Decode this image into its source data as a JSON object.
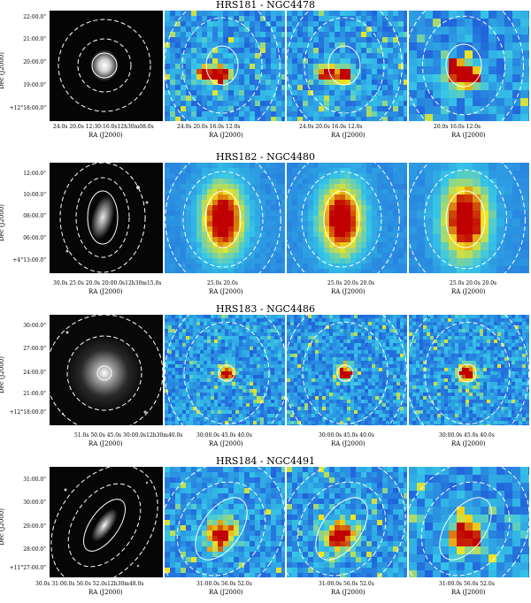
{
  "rows": [
    {
      "title": "HRS181 - NGC4478",
      "ylabel": "Dec (J2000)",
      "yticks": [
        "22:00.0\"",
        "21:00.0\"",
        "20:00.0\"",
        "19:00.0\"",
        "+12°18:00.0\""
      ],
      "panels": [
        {
          "xticks": "24.0s    20.0s    12:30:16.0s12h30m08.0s",
          "xtitle": "RA (J2000)"
        },
        {
          "xticks": "24.0s  20.0s    16.0s   12.0s",
          "xtitle": "RA (J2000)"
        },
        {
          "xticks": "24.0s  20.0s    16.0s   12.0s",
          "xtitle": "RA (J2000)"
        },
        {
          "xticks": "20.0s   16.0s   12.0s",
          "xtitle": "RA (J2000)"
        }
      ]
    },
    {
      "title": "HRS182 - NGC4480",
      "ylabel": "Dec (J2000)",
      "yticks": [
        "12:00.0\"",
        "10:00.0\"",
        "08:00.0\"",
        "06:00.0\"",
        "+4°13:00.0\""
      ],
      "panels": [
        {
          "xticks": "30.0s        25.0s   20.0s  20:00.0s12h30m15.0s",
          "xtitle": "RA (J2000)"
        },
        {
          "xticks": "25.0s    20.0s",
          "xtitle": "RA (J2000)"
        },
        {
          "xticks": "25.0s    20.0s    20.0s",
          "xtitle": "RA (J2000)"
        },
        {
          "xticks": "25.0s    20.0s    20.0s",
          "xtitle": "RA (J2000)"
        }
      ]
    },
    {
      "title": "HRS183 - NGC4486",
      "ylabel": "Dec (J2000)",
      "yticks": [
        "30:00.0\"",
        "27:00.0\"",
        "24:00.0\"",
        "21:00.0\"",
        "+12°18:00.0\""
      ],
      "panels": [
        {
          "xticks": "51.0s 50.0s  45.0s    30:00.0s12h30m40.0s",
          "xtitle": "RA (J2000)"
        },
        {
          "xticks": "30:00.0s 45.0s   40.0s",
          "xtitle": "RA (J2000)"
        },
        {
          "xticks": "30:00.0s 45.0s   40.0s",
          "xtitle": "RA (J2000)"
        },
        {
          "xticks": "30:00.0s 45.0s   40.0s",
          "xtitle": "RA (J2000)"
        }
      ]
    },
    {
      "title": "HRS184 - NGC4491",
      "ylabel": "Dec (J2000)",
      "yticks": [
        "31:00.0\"",
        "30:00.0\"",
        "29:00.0\"",
        "28:00.0\"",
        "+11°27:00.0\""
      ],
      "panels": [
        {
          "xticks": "30.0s    31:00.0s 56.0s  52.0s12h30m48.0s",
          "xtitle": "RA (J2000)"
        },
        {
          "xticks": "31:00.0s 56.0s  52.0s",
          "xtitle": "RA (J2000)"
        },
        {
          "xticks": "31:00.0s 56.0s  52.0s",
          "xtitle": "RA (J2000)"
        },
        {
          "xticks": "31:00.0s 56.0s  52.0s",
          "xtitle": "RA (J2000)"
        }
      ]
    }
  ],
  "colors": {
    "heat_low": "#1a3fd6",
    "heat_mid": "#36c7e8",
    "heat_high": "#f2e51c",
    "heat_peak": "#c00000"
  }
}
